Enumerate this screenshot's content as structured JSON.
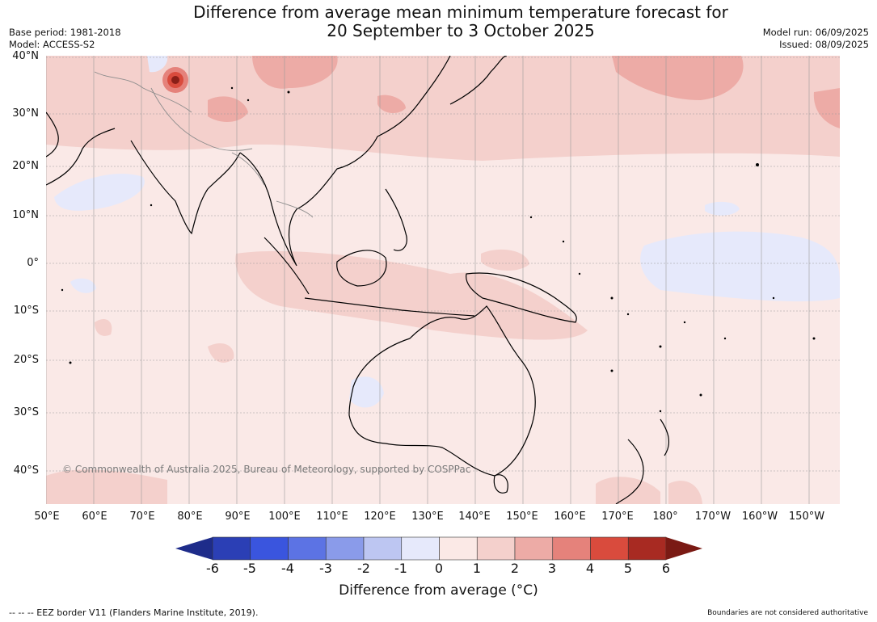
{
  "header": {
    "title_line1": "Difference from average mean minimum temperature forecast for",
    "title_line2": "20 September to 3 October 2025",
    "base_period": "Base period: 1981-2018",
    "model": "Model: ACCESS-S2",
    "model_run": "Model run: 06/09/2025",
    "issued": "Issued: 08/09/2025"
  },
  "map": {
    "lat_labels": [
      "40°N",
      "30°N",
      "20°N",
      "10°N",
      "0°",
      "10°S",
      "20°S",
      "30°S",
      "40°S"
    ],
    "lon_labels": [
      "50°E",
      "60°E",
      "70°E",
      "80°E",
      "90°E",
      "100°E",
      "110°E",
      "120°E",
      "130°E",
      "140°E",
      "150°E",
      "160°E",
      "170°E",
      "180°",
      "170°W",
      "160°W",
      "150°W"
    ],
    "copyright": "© Commonwealth of Australia 2025, Bureau of Meteorology, supported by COSPPac",
    "background_color": "#fae9e7"
  },
  "colorbar": {
    "ticks": [
      "-6",
      "-5",
      "-4",
      "-3",
      "-2",
      "-1",
      "0",
      "1",
      "2",
      "3",
      "4",
      "5",
      "6"
    ],
    "colors": [
      "#1e2c8a",
      "#2b3fb5",
      "#3a55de",
      "#5c73e4",
      "#8a9bea",
      "#bdc6f2",
      "#e6e9fb",
      "#fbe9e6",
      "#f4d0cc",
      "#edaba6",
      "#e5827b",
      "#d94b3d",
      "#a82a22",
      "#7a1a14"
    ],
    "title": "Difference from average (°C)"
  },
  "footer": {
    "eez_note": "--  --  -- EEZ border V11 (Flanders Marine Institute, 2019).",
    "boundaries_note": "Boundaries are not considered authoritative"
  }
}
